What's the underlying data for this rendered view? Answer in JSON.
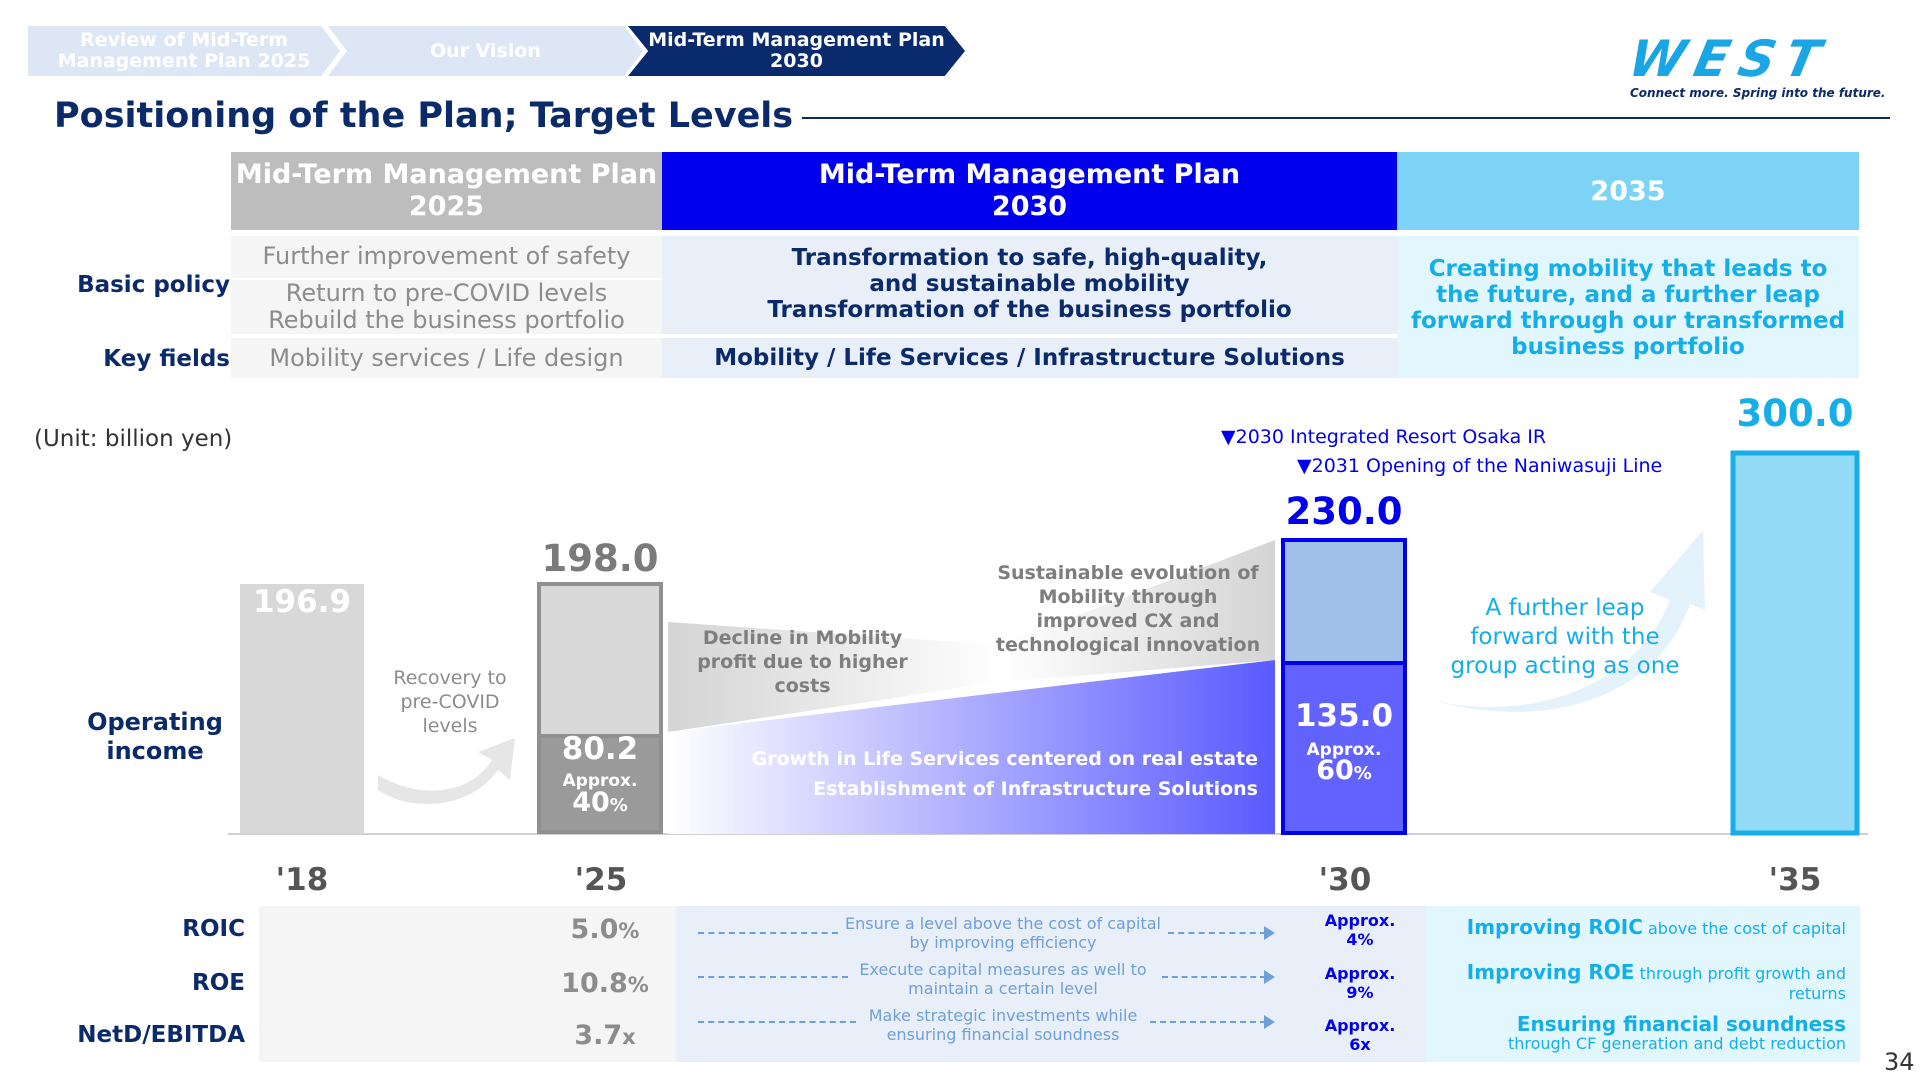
{
  "breadcrumb": {
    "items": [
      "Review of Mid-Term Management Plan 2025",
      "Our Vision",
      "Mid-Term Management Plan 2030"
    ]
  },
  "logo": {
    "wordmark": "WEST",
    "tagline": "Connect more. Spring into the future."
  },
  "page": {
    "title": "Positioning of the Plan; Target Levels",
    "number": "34"
  },
  "colors": {
    "navy": "#0b2a6a",
    "plan2030": "#0000ee",
    "sky": "#16aee8",
    "gray": "#8c8c8c"
  },
  "table": {
    "col1_header": "Mid-Term Management Plan 2025",
    "col2_header": "Mid-Term Management Plan 2030",
    "col3_header": "2035",
    "rows": {
      "basic_policy_label": "Basic policy",
      "key_fields_label": "Key fields"
    },
    "col1": {
      "policy_line1": "Further improvement of safety",
      "policy_line2": "Return to pre-COVID levels",
      "policy_line3": "Rebuild the business portfolio",
      "key_fields": "Mobility services / Life design"
    },
    "col2": {
      "policy_line1": "Transformation to safe, high-quality,",
      "policy_line2": "and sustainable mobility",
      "policy_line3": "Transformation of the business portfolio",
      "key_fields": "Mobility / Life Services / Infrastructure Solutions"
    },
    "col3": {
      "policy": "Creating mobility that leads to the future, and a further leap forward through our transformed business portfolio"
    }
  },
  "chart": {
    "unit": "(Unit: billion yen)",
    "row_label_line1": "Operating",
    "row_label_line2": "income",
    "events": [
      "▼2030  Integrated Resort Osaka IR",
      "▼2031  Opening of the Naniwasuji Line"
    ],
    "bars": {
      "y18": {
        "label": "196.9"
      },
      "y25": {
        "total": "198.0",
        "segment": "80.2",
        "approx": "Approx.",
        "pct": "40",
        "pct_unit": "%"
      },
      "y30": {
        "total": "230.0",
        "segment": "135.0",
        "approx": "Approx.",
        "pct": "60",
        "pct_unit": "%"
      },
      "y35": {
        "total": "300.0"
      }
    },
    "annotations": {
      "recovery_line1": "Recovery to",
      "recovery_line2": "pre-COVID",
      "recovery_line3": "levels",
      "decline_line1": "Decline in Mobility",
      "decline_line2": "profit due to higher",
      "decline_line3": "costs",
      "sustain_line1": "Sustainable evolution of",
      "sustain_line2": "Mobility through",
      "sustain_line3": "improved CX and",
      "sustain_line4": "technological innovation",
      "growth_line1": "Growth in Life Services centered on real estate",
      "growth_line2": "Establishment of Infrastructure Solutions",
      "leap_line1": "A further leap",
      "leap_line2": "forward with the",
      "leap_line3": "group acting as one"
    },
    "years": [
      "'18",
      "'25",
      "'30",
      "'35"
    ]
  },
  "kpis": [
    {
      "label": "ROIC",
      "v25": "5.0",
      "v25_unit": "%",
      "note_line1": "Ensure a level above the cost of capital",
      "note_line2": "by improving efficiency",
      "v30_line1": "Approx.",
      "v30_line2": "4%",
      "t35_bold": "Improving ROIC",
      "t35_rest": " above the cost of capital"
    },
    {
      "label": "ROE",
      "v25": "10.8",
      "v25_unit": "%",
      "note_line1": "Execute capital measures as well to",
      "note_line2": "maintain a certain level",
      "v30_line1": "Approx.",
      "v30_line2": "9%",
      "t35_bold": "Improving ROE",
      "t35_rest": " through profit growth and returns"
    },
    {
      "label": "NetD/EBITDA",
      "v25": "3.7",
      "v25_unit": "x",
      "note_line1": "Make strategic investments while",
      "note_line2": "ensuring financial soundness",
      "v30_line1": "Approx.",
      "v30_line2": "6x",
      "t35_bold": "Ensuring financial soundness",
      "t35_rest": "through CF generation and debt reduction"
    }
  ]
}
